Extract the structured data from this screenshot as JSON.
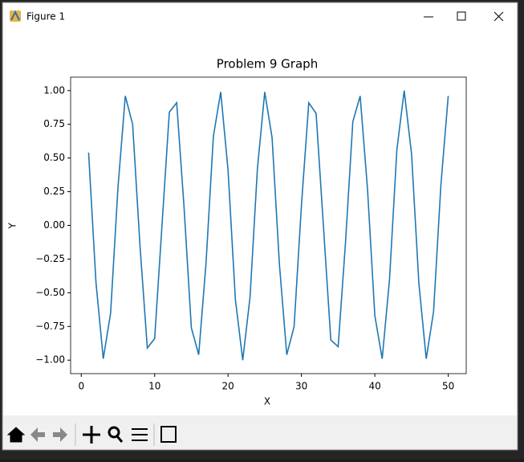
{
  "window": {
    "title": "Figure 1"
  },
  "chart_data": {
    "type": "line",
    "title": "Problem 9 Graph",
    "x_label": "X",
    "y_label": "Y",
    "x": [
      1,
      2,
      3,
      4,
      5,
      6,
      7,
      8,
      9,
      10,
      11,
      12,
      13,
      14,
      15,
      16,
      17,
      18,
      19,
      20,
      21,
      22,
      23,
      24,
      25,
      26,
      27,
      28,
      29,
      30,
      31,
      32,
      33,
      34,
      35,
      36,
      37,
      38,
      39,
      40,
      41,
      42,
      43,
      44,
      45,
      46,
      47,
      48,
      49,
      50
    ],
    "series": [
      {
        "color": "#1f77b4",
        "values": [
          0.54,
          -0.42,
          -0.99,
          -0.65,
          0.28,
          0.96,
          0.75,
          -0.15,
          -0.91,
          -0.84,
          0.0,
          0.84,
          0.91,
          0.14,
          -0.76,
          -0.96,
          -0.28,
          0.66,
          0.99,
          0.41,
          -0.55,
          -1.0,
          -0.53,
          0.42,
          0.99,
          0.65,
          -0.29,
          -0.96,
          -0.75,
          0.15,
          0.91,
          0.83,
          -0.01,
          -0.85,
          -0.9,
          -0.13,
          0.77,
          0.96,
          0.27,
          -0.67,
          -0.99,
          -0.4,
          0.56,
          1.0,
          0.53,
          -0.43,
          -0.99,
          -0.64,
          0.3,
          0.96
        ]
      }
    ],
    "xlim": [
      -1.45,
      52.45
    ],
    "xticks": [
      0,
      10,
      20,
      30,
      40,
      50
    ],
    "ylim": [
      -1.1,
      1.1
    ],
    "yticks": [
      {
        "value": -1,
        "label": "−1.00"
      },
      {
        "value": -0.75,
        "label": "−0.75"
      },
      {
        "value": -0.5,
        "label": "−0.50"
      },
      {
        "value": -0.25,
        "label": "−0.25"
      },
      {
        "value": 0,
        "label": "0.00"
      },
      {
        "value": 0.25,
        "label": "0.25"
      },
      {
        "value": 0.5,
        "label": "0.50"
      },
      {
        "value": 0.75,
        "label": "0.75"
      },
      {
        "value": 1,
        "label": "1.00"
      }
    ],
    "grid": false
  }
}
